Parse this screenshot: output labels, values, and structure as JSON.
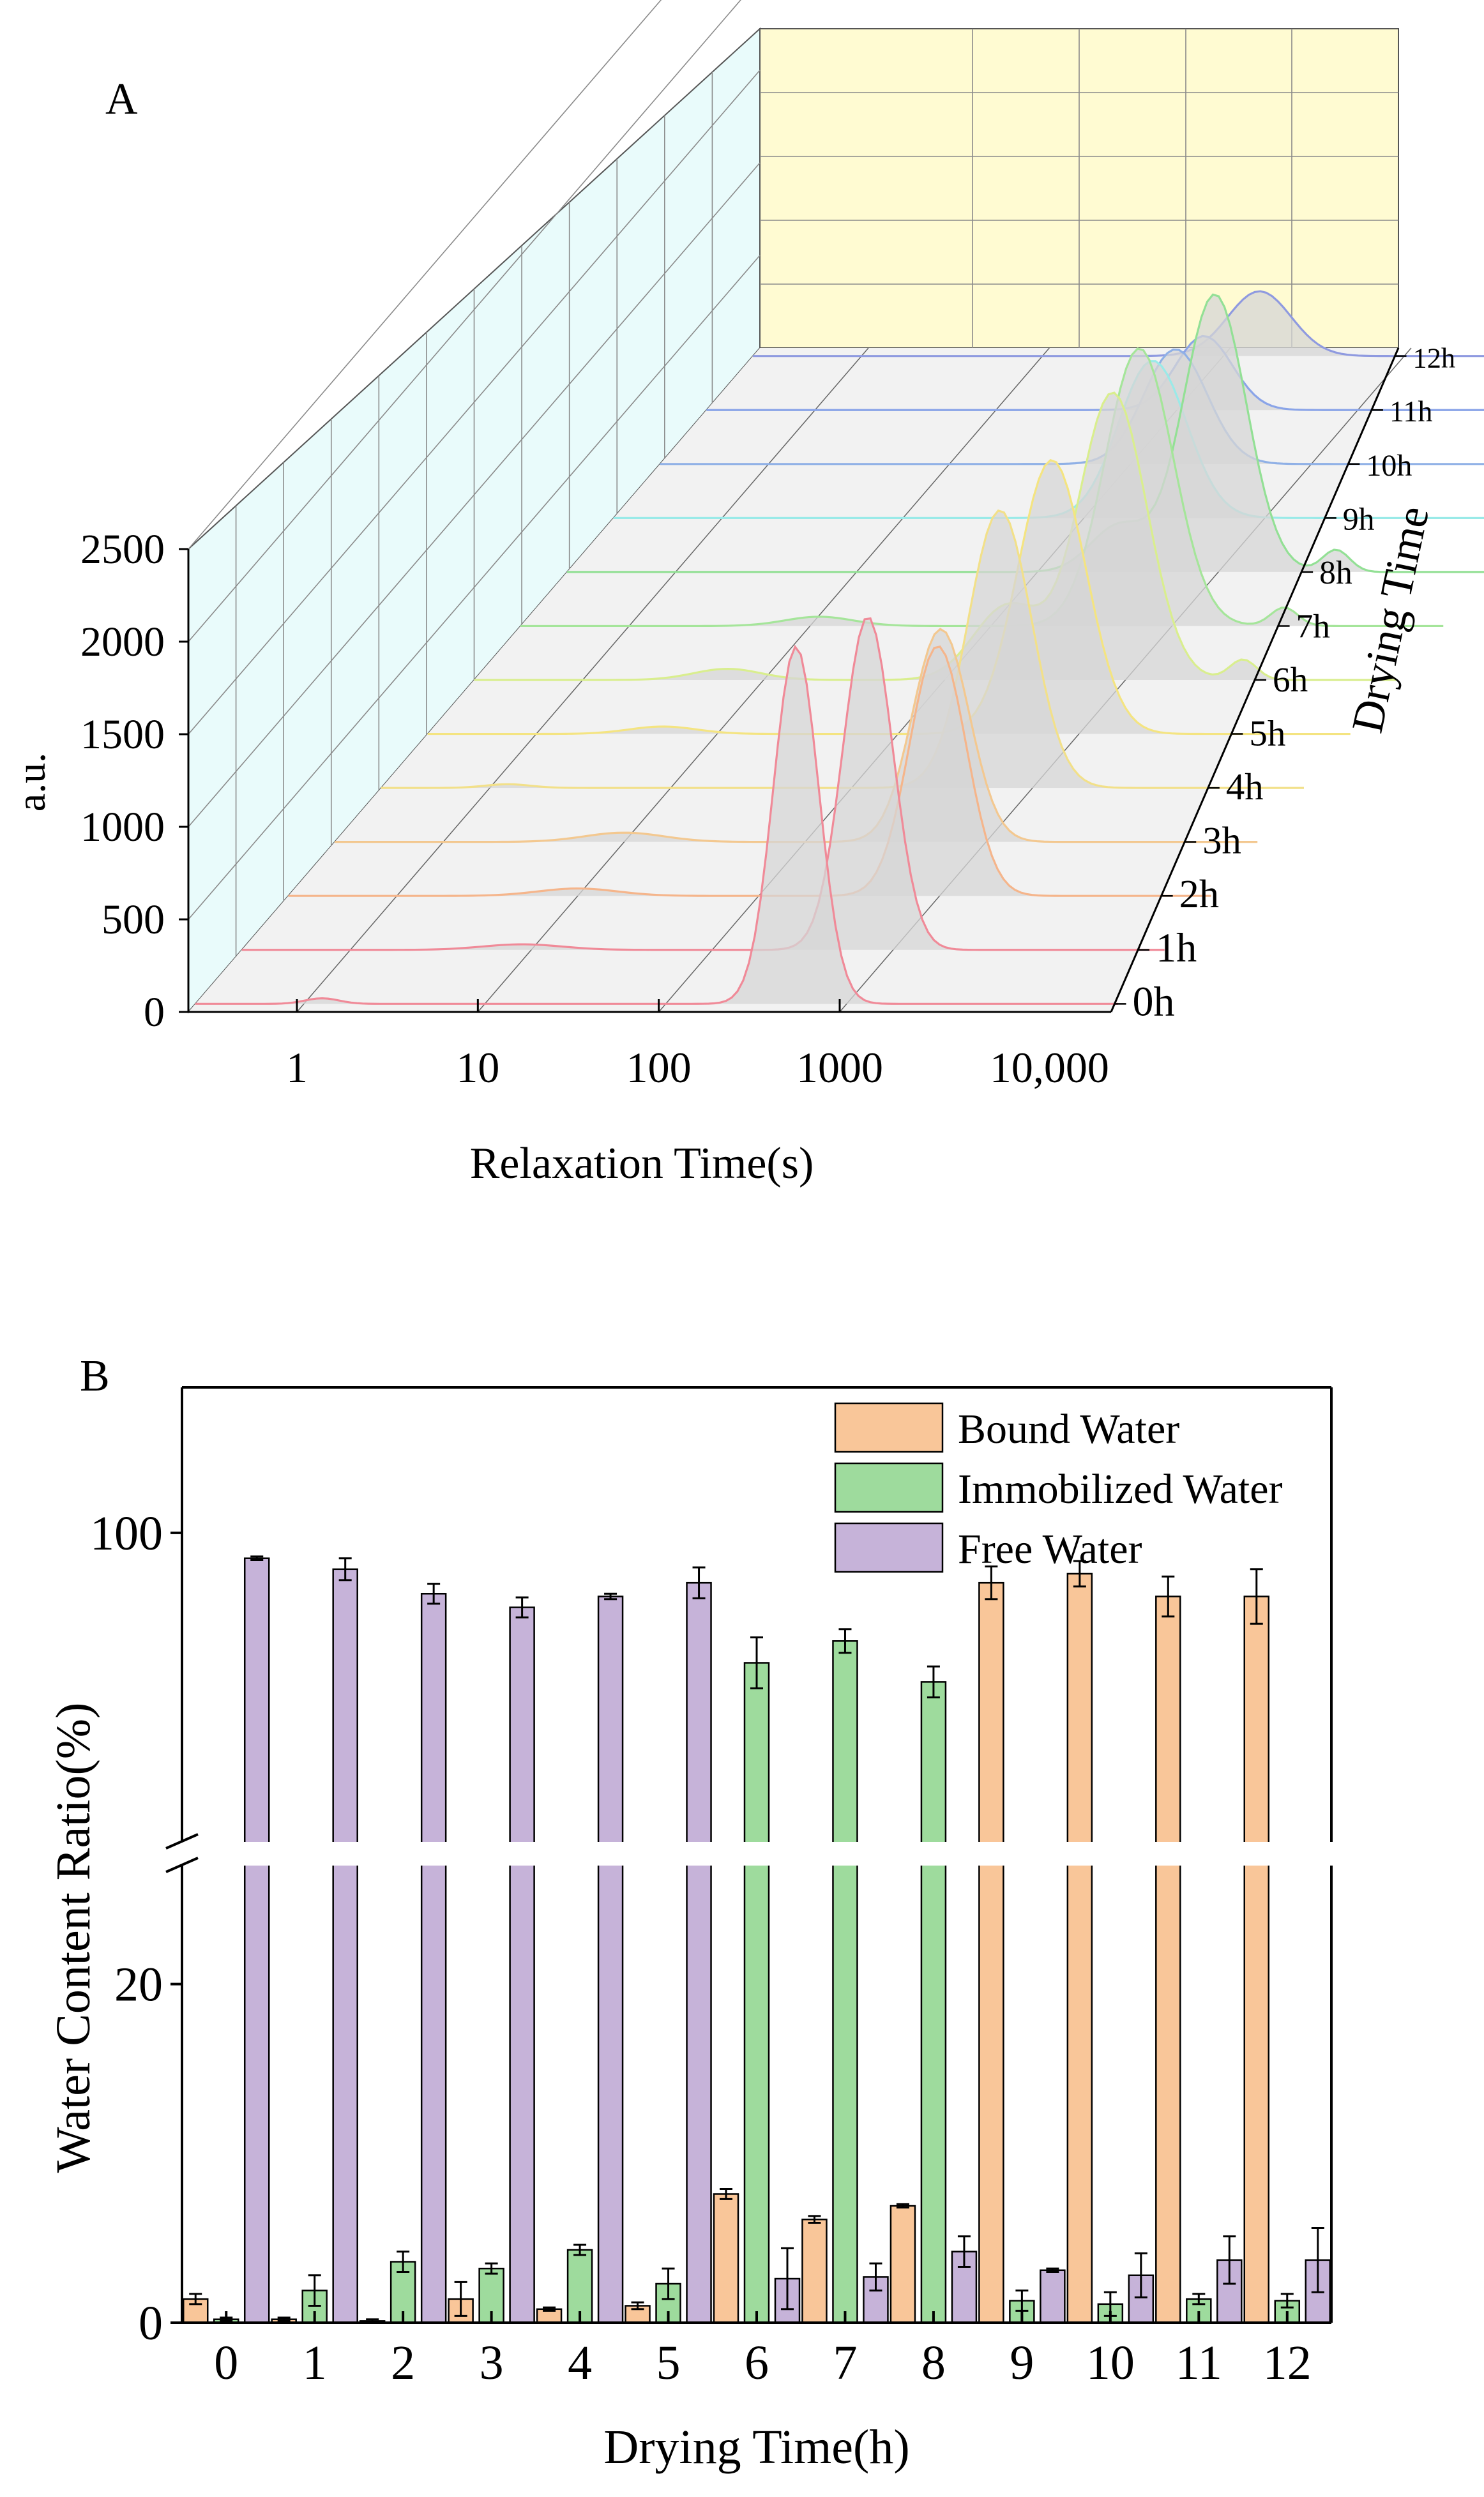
{
  "chart_data": [
    {
      "panel_label": "A",
      "type": "line",
      "subtype": "3d-waterfall",
      "title": "",
      "xlabel": "Relaxation Time(s)",
      "ylabel": "a.u.",
      "zlabel": "Drying Time",
      "x_tick_labels": [
        "1",
        "10",
        "100",
        "1000",
        "10,000"
      ],
      "y_ticks": [
        0,
        500,
        1000,
        1500,
        2000,
        2500
      ],
      "ylim": [
        0,
        2500
      ],
      "z_tick_labels": [
        "0h",
        "1h",
        "2h",
        "3h",
        "4h",
        "5h",
        "6h",
        "7h",
        "8h",
        "9h",
        "10h",
        "11h",
        "12h"
      ],
      "colors": {
        "back_wall": "#fffbd2",
        "side_wall": "#e9fbfb",
        "floor": "#f2f2f2",
        "peak_fill": "#d6d6d6",
        "series": [
          "#f08a98",
          "#f08a98",
          "#f5b58b",
          "#f3c890",
          "#f2e089",
          "#f4e481",
          "#d9ee8e",
          "#a5e59a",
          "#93e095",
          "#9aeae8",
          "#8fb0e6",
          "#8aa4e8",
          "#8f9ae0"
        ]
      },
      "series": [
        {
          "name": "0h",
          "peaks": [
            {
              "log10_t": 0.1,
              "amp": 30,
              "width": 0.15
            },
            {
              "log10_t": 2.72,
              "amp": 1930,
              "width": 0.2
            }
          ]
        },
        {
          "name": "1h",
          "peaks": [
            {
              "log10_t": 0.95,
              "amp": 30,
              "width": 0.35
            },
            {
              "log10_t": 2.86,
              "amp": 1800,
              "width": 0.22
            }
          ]
        },
        {
          "name": "2h",
          "peaks": [
            {
              "log10_t": 1.0,
              "amp": 40,
              "width": 0.35
            },
            {
              "log10_t": 2.99,
              "amp": 1350,
              "width": 0.25
            }
          ]
        },
        {
          "name": "3h",
          "peaks": [
            {
              "log10_t": 1.0,
              "amp": 50,
              "width": 0.35
            },
            {
              "log10_t": 2.75,
              "amp": 1150,
              "width": 0.25
            }
          ]
        },
        {
          "name": "4h",
          "peaks": [
            {
              "log10_t": 0.1,
              "amp": 20,
              "width": 0.2
            },
            {
              "log10_t": 2.82,
              "amp": 1500,
              "width": 0.28
            }
          ]
        },
        {
          "name": "5h",
          "peaks": [
            {
              "log10_t": 0.7,
              "amp": 40,
              "width": 0.3
            },
            {
              "log10_t": 2.85,
              "amp": 1480,
              "width": 0.3
            }
          ]
        },
        {
          "name": "6h",
          "peaks": [
            {
              "log10_t": 0.8,
              "amp": 60,
              "width": 0.3
            },
            {
              "log10_t": 2.35,
              "amp": 400,
              "width": 0.3
            },
            {
              "log10_t": 2.93,
              "amp": 1550,
              "width": 0.3
            },
            {
              "log10_t": 3.65,
              "amp": 110,
              "width": 0.12
            }
          ]
        },
        {
          "name": "7h",
          "peaks": [
            {
              "log10_t": 1.05,
              "amp": 50,
              "width": 0.3
            },
            {
              "log10_t": 2.82,
              "amp": 1500,
              "width": 0.3
            },
            {
              "log10_t": 3.62,
              "amp": 100,
              "width": 0.12
            }
          ]
        },
        {
          "name": "8h",
          "peaks": [
            {
              "log10_t": 2.45,
              "amp": 250,
              "width": 0.25
            },
            {
              "log10_t": 2.98,
              "amp": 1500,
              "width": 0.28
            },
            {
              "log10_t": 3.65,
              "amp": 120,
              "width": 0.12
            }
          ]
        },
        {
          "name": "9h",
          "peaks": [
            {
              "log10_t": 2.38,
              "amp": 850,
              "width": 0.3
            }
          ]
        },
        {
          "name": "10h",
          "peaks": [
            {
              "log10_t": 2.25,
              "amp": 620,
              "width": 0.28
            }
          ]
        },
        {
          "name": "11h",
          "peaks": [
            {
              "log10_t": 2.15,
              "amp": 400,
              "width": 0.25
            }
          ]
        },
        {
          "name": "12h",
          "peaks": [
            {
              "log10_t": 2.2,
              "amp": 350,
              "width": 0.28
            }
          ]
        }
      ]
    },
    {
      "panel_label": "B",
      "type": "bar",
      "title": "",
      "xlabel": "Drying Time(h)",
      "ylabel": "Water Content Ratio(%)",
      "categories": [
        "0",
        "1",
        "2",
        "3",
        "4",
        "5",
        "6",
        "7",
        "8",
        "9",
        "10",
        "11",
        "12"
      ],
      "y_axis_break": {
        "lower": [
          0,
          27
        ],
        "upper": [
          66,
          116
        ]
      },
      "y_ticks": [
        0,
        20,
        100
      ],
      "series": [
        {
          "name": "Bound Water",
          "color": "#f9c699",
          "values": [
            1.4,
            0.2,
            0.1,
            1.4,
            0.8,
            1.0,
            7.6,
            6.1,
            6.9,
            94.5,
            95.5,
            93.0,
            93.0
          ],
          "errors": [
            0.3,
            0.1,
            0.1,
            1.0,
            0.1,
            0.2,
            0.3,
            0.2,
            0.1,
            1.8,
            1.4,
            2.2,
            3.0
          ]
        },
        {
          "name": "Immobilized Water",
          "color": "#9edb9d",
          "values": [
            0.2,
            1.9,
            3.6,
            3.2,
            4.3,
            2.3,
            85.7,
            88.1,
            83.6,
            1.3,
            1.1,
            1.4,
            1.3
          ],
          "errors": [
            0.1,
            0.9,
            0.6,
            0.3,
            0.3,
            0.9,
            2.8,
            1.3,
            1.7,
            0.6,
            0.7,
            0.3,
            0.4
          ]
        },
        {
          "name": "Free Water",
          "color": "#c6b3d9",
          "values": [
            97.2,
            96.0,
            93.3,
            91.8,
            93.0,
            94.5,
            2.6,
            2.7,
            4.2,
            3.1,
            2.8,
            3.7,
            3.7
          ],
          "errors": [
            0.2,
            1.2,
            1.1,
            1.1,
            0.3,
            1.7,
            1.8,
            0.8,
            0.9,
            0.1,
            1.3,
            1.4,
            1.9
          ]
        }
      ],
      "legend": {
        "position": "top-right"
      }
    }
  ]
}
